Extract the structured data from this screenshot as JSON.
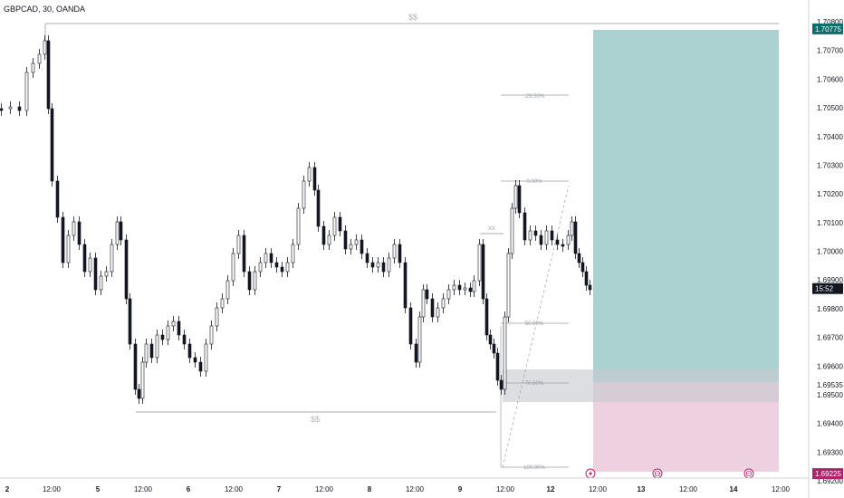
{
  "symbol": "GBPCAD, 30, OANDA",
  "price_axis": {
    "labels": [
      "1.70800",
      "1.70700",
      "1.70600",
      "1.70500",
      "1.70400",
      "1.70300",
      "1.70200",
      "1.70100",
      "1.70000",
      "1.69900",
      "1.69800",
      "1.69700",
      "1.69600",
      "1.69535",
      "1.69500",
      "1.69400",
      "1.69300",
      "1.69200"
    ],
    "values": [
      1.708,
      1.707,
      1.706,
      1.705,
      1.704,
      1.703,
      1.702,
      1.701,
      1.7,
      1.699,
      1.698,
      1.697,
      1.696,
      1.69535,
      1.695,
      1.694,
      1.693,
      1.692
    ],
    "target_tag": "1.70775",
    "stop_tag": "1.69225",
    "countdown_tag": "15:52",
    "colors": {
      "target": "#0e6e6e",
      "stop": "#b0246b",
      "countdown": "#131722"
    }
  },
  "time_axis": {
    "labels": [
      "2",
      "12:00",
      "5",
      "12:00",
      "6",
      "12:00",
      "7",
      "12:00",
      "8",
      "12:00",
      "9",
      "12:00",
      "12",
      "12:00",
      "13",
      "12:00",
      "14",
      "12:00"
    ]
  },
  "annotations": {
    "liquidity_top": "$$",
    "liquidity_bottom": "$$",
    "swing_mark": "XX",
    "fib_levels": [
      "-29.50%",
      "0.00%",
      "50.00%",
      "70.50%",
      "100.00%"
    ]
  },
  "position_tool": {
    "entry": 1.69535,
    "target": 1.70775,
    "stop": 1.69225,
    "target_color": "#80b9b9",
    "stop_color": "#e7c2d6",
    "zone_color": "#c6c8cd"
  },
  "event_icons": [
    "lightning-event-icon",
    "globe-event-icon",
    "globe-event-icon"
  ]
}
